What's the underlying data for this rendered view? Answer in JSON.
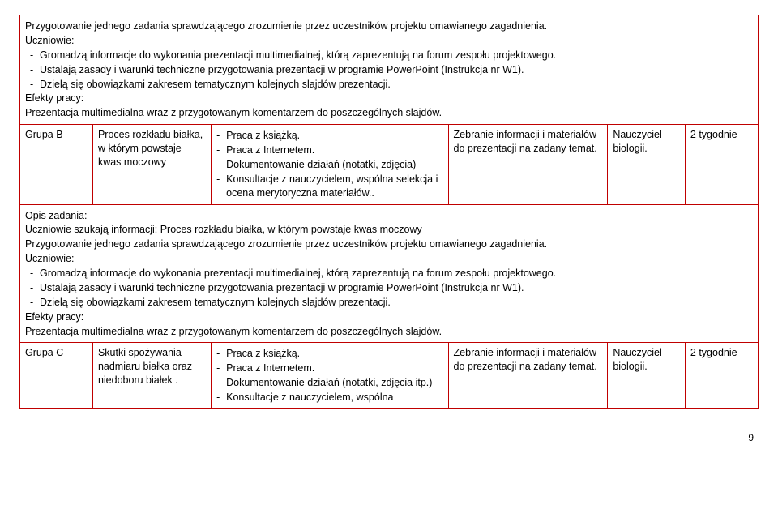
{
  "border_color": "#c00000",
  "page_number": "9",
  "section1": {
    "intro_line": "Przygotowanie jednego zadania sprawdzającego zrozumienie przez uczestników projektu omawianego zagadnienia.",
    "uczniowie_label": "Uczniowie:",
    "bullets": [
      "Gromadzą informacje do wykonania prezentacji multimedialnej, którą zaprezentują na forum zespołu projektowego.",
      "Ustalają zasady i warunki techniczne przygotowania prezentacji w programie PowerPoint (Instrukcja nr W1).",
      "Dzielą się obowiązkami zakresem tematycznym kolejnych slajdów prezentacji."
    ],
    "efekty_label": "Efekty pracy:",
    "efekty_text": "Prezentacja multimedialna wraz z przygotowanym komentarzem do poszczególnych slajdów."
  },
  "rowB": {
    "group": "Grupa B",
    "col2": "Proces rozkładu białka, w którym powstaje kwas moczowy",
    "col3_items": [
      "Praca z książką.",
      "Praca z Internetem.",
      "Dokumentowanie działań (notatki, zdjęcia)",
      "Konsultacje z nauczycielem, wspólna selekcja i ocena merytoryczna materiałów.."
    ],
    "col4": "Zebranie informacji i materiałów do prezentacji na zadany temat.",
    "col5": "Nauczyciel biologii.",
    "col6": "2 tygodnie"
  },
  "section2": {
    "opis_label": "Opis zadania:",
    "opis_text": "Uczniowie szukają informacji: Proces rozkładu białka, w którym powstaje kwas moczowy",
    "line2": "Przygotowanie jednego zadania sprawdzającego zrozumienie przez uczestników projektu omawianego zagadnienia.",
    "uczniowie_label": "Uczniowie:",
    "bullets": [
      "Gromadzą informacje do wykonania prezentacji multimedialnej, którą zaprezentują na forum zespołu projektowego.",
      "Ustalają zasady i warunki techniczne przygotowania prezentacji w programie PowerPoint (Instrukcja nr W1).",
      "Dzielą się obowiązkami zakresem tematycznym kolejnych slajdów prezentacji."
    ],
    "efekty_label": "Efekty pracy:",
    "efekty_text": "Prezentacja multimedialna wraz z przygotowanym komentarzem do poszczególnych slajdów."
  },
  "rowC": {
    "group": "Grupa C",
    "col2": "Skutki spożywania nadmiaru białka oraz niedoboru białek .",
    "col3_items": [
      "Praca z książką.",
      "Praca z Internetem.",
      "Dokumentowanie działań (notatki, zdjęcia itp.)",
      "Konsultacje z nauczycielem, wspólna"
    ],
    "col4": "Zebranie informacji i materiałów do prezentacji na zadany temat.",
    "col5": "Nauczyciel biologii.",
    "col6": "2 tygodnie"
  }
}
